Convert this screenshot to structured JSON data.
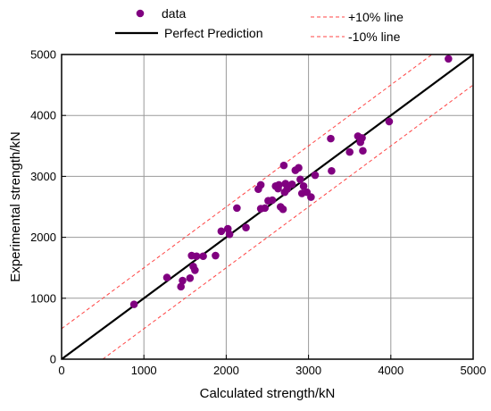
{
  "chart_data": {
    "type": "scatter",
    "title": "",
    "xlabel": "Calculated strength/kN",
    "ylabel": "Experimental strength/kN",
    "xlim": [
      0,
      5000
    ],
    "ylim": [
      0,
      5000
    ],
    "xticks": [
      0,
      1000,
      2000,
      3000,
      4000,
      5000
    ],
    "yticks": [
      0,
      1000,
      2000,
      3000,
      4000,
      5000
    ],
    "grid": true,
    "legend_position": "top",
    "series": [
      {
        "name": "data",
        "kind": "scatter",
        "color": "#800080",
        "points": [
          [
            880,
            900
          ],
          [
            1280,
            1340
          ],
          [
            1450,
            1190
          ],
          [
            1470,
            1290
          ],
          [
            1560,
            1330
          ],
          [
            1580,
            1700
          ],
          [
            1600,
            1520
          ],
          [
            1620,
            1460
          ],
          [
            1640,
            1690
          ],
          [
            1720,
            1690
          ],
          [
            1870,
            1700
          ],
          [
            1940,
            2100
          ],
          [
            2020,
            2140
          ],
          [
            2040,
            2050
          ],
          [
            2130,
            2480
          ],
          [
            2240,
            2160
          ],
          [
            2390,
            2790
          ],
          [
            2420,
            2470
          ],
          [
            2420,
            2860
          ],
          [
            2470,
            2480
          ],
          [
            2510,
            2600
          ],
          [
            2560,
            2610
          ],
          [
            2600,
            2840
          ],
          [
            2630,
            2800
          ],
          [
            2640,
            2860
          ],
          [
            2660,
            2500
          ],
          [
            2690,
            2460
          ],
          [
            2700,
            3180
          ],
          [
            2710,
            2740
          ],
          [
            2720,
            2880
          ],
          [
            2740,
            2790
          ],
          [
            2800,
            2870
          ],
          [
            2840,
            3100
          ],
          [
            2880,
            3140
          ],
          [
            2900,
            2950
          ],
          [
            2920,
            2720
          ],
          [
            2940,
            2840
          ],
          [
            2980,
            2740
          ],
          [
            3030,
            2660
          ],
          [
            3080,
            3020
          ],
          [
            3270,
            3620
          ],
          [
            3280,
            3090
          ],
          [
            3500,
            3400
          ],
          [
            3600,
            3660
          ],
          [
            3630,
            3560
          ],
          [
            3650,
            3630
          ],
          [
            3660,
            3420
          ],
          [
            3980,
            3900
          ],
          [
            4700,
            4930
          ]
        ]
      },
      {
        "name": "Perfect Prediction",
        "kind": "line",
        "color": "#000000",
        "x": [
          0,
          5000
        ],
        "y": [
          0,
          5000
        ]
      },
      {
        "name": "+10% line",
        "kind": "line",
        "color": "#ff4444",
        "dashed": true,
        "x": [
          0,
          5000
        ],
        "y": [
          500,
          5500
        ]
      },
      {
        "name": "-10%  line",
        "kind": "line",
        "color": "#ff4444",
        "dashed": true,
        "x": [
          500,
          5500
        ],
        "y": [
          0,
          5000
        ]
      }
    ]
  }
}
